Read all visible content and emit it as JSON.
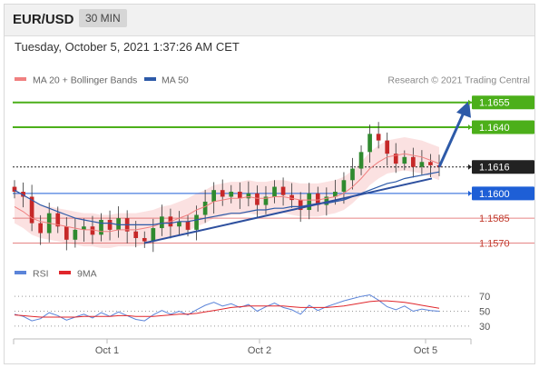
{
  "header": {
    "symbol": "EUR/USD",
    "timeframe": "30 MIN"
  },
  "datetime": "Tuesday, October 5, 2021 1:37:26 AM CET",
  "legend": {
    "ma20": "MA 20 + Bollinger Bands",
    "ma50": "MA 50",
    "ma20_color": "#f08080",
    "ma50_color": "#2d5aa8"
  },
  "credit": "Research © 2021 Trading Central",
  "rsi_legend": {
    "rsi": "RSI",
    "ma9": "9MA",
    "rsi_color": "#5b84d9",
    "ma9_color": "#e0262b"
  },
  "chart_data": {
    "type": "line",
    "title": "",
    "instrument": "EUR/USD",
    "interval": "30 MIN",
    "x_ticks": [
      "Oct 1",
      "Oct 2",
      "Oct 5"
    ],
    "price_levels": [
      {
        "value": "1.1655",
        "kind": "resistance",
        "color": "#4caf1a"
      },
      {
        "value": "1.1640",
        "kind": "resistance",
        "color": "#4caf1a"
      },
      {
        "value": "1.1616",
        "kind": "last",
        "color": "#222222"
      },
      {
        "value": "1.1600",
        "kind": "pivot",
        "color": "#1e5fd6"
      },
      {
        "value": "1.1585",
        "kind": "support",
        "color": "#e06666"
      },
      {
        "value": "1.1570",
        "kind": "support",
        "color": "#e06666"
      }
    ],
    "price_series": {
      "name": "EUR/USD",
      "values": [
        1.1601,
        1.1598,
        1.1582,
        1.1576,
        1.1588,
        1.158,
        1.1572,
        1.1578,
        1.158,
        1.1575,
        1.1584,
        1.1578,
        1.1585,
        1.1577,
        1.1573,
        1.1571,
        1.1579,
        1.1586,
        1.158,
        1.1583,
        1.1578,
        1.1587,
        1.1595,
        1.1602,
        1.1598,
        1.1601,
        1.1597,
        1.16,
        1.1593,
        1.1598,
        1.1604,
        1.1599,
        1.1596,
        1.159,
        1.16,
        1.1593,
        1.1598,
        1.1601,
        1.1608,
        1.1615,
        1.1625,
        1.1636,
        1.1632,
        1.1624,
        1.1618,
        1.1622,
        1.1616,
        1.1619,
        1.1617,
        1.1616
      ]
    },
    "ma20": [
      1.1592,
      1.1589,
      1.1585,
      1.1583,
      1.1582,
      1.1581,
      1.158,
      1.1579,
      1.1578,
      1.1578,
      1.1577,
      1.1577,
      1.1578,
      1.1578,
      1.1578,
      1.1579,
      1.158,
      1.1582,
      1.1583,
      1.1585,
      1.1587,
      1.159,
      1.1592,
      1.1595,
      1.1596,
      1.1597,
      1.1597,
      1.1598,
      1.1597,
      1.1597,
      1.1598,
      1.1598,
      1.1597,
      1.1596,
      1.1596,
      1.1596,
      1.1597,
      1.1598,
      1.16,
      1.1604,
      1.1609,
      1.1615,
      1.1619,
      1.1622,
      1.1623,
      1.1624,
      1.1623,
      1.1622,
      1.162,
      1.1618
    ],
    "ma50": [
      1.1602,
      1.1599,
      1.1596,
      1.1593,
      1.1591,
      1.1589,
      1.1587,
      1.1585,
      1.1584,
      1.1583,
      1.1582,
      1.1582,
      1.1581,
      1.1581,
      1.1581,
      1.1581,
      1.1581,
      1.1582,
      1.1582,
      1.1583,
      1.1583,
      1.1584,
      1.1585,
      1.1586,
      1.1587,
      1.1588,
      1.1588,
      1.1589,
      1.159,
      1.159,
      1.1591,
      1.1591,
      1.1592,
      1.1592,
      1.1593,
      1.1594,
      1.1594,
      1.1595,
      1.1596,
      1.1598,
      1.16,
      1.1602,
      1.1604,
      1.1606,
      1.1607,
      1.1609,
      1.161,
      1.1611,
      1.1612,
      1.1613
    ],
    "bb_width": 0.001,
    "trendline": {
      "from": [
        15,
        1.157
      ],
      "to": [
        49,
        1.1606
      ]
    },
    "target_arrow": {
      "from_value": 1.1616,
      "to_value": 1.1655
    },
    "y_range": [
      1.1562,
      1.1662
    ],
    "rsi": {
      "yticks": [
        "70",
        "50",
        "30"
      ],
      "values": [
        46,
        43,
        37,
        40,
        48,
        44,
        38,
        42,
        46,
        41,
        48,
        43,
        49,
        44,
        39,
        37,
        45,
        51,
        46,
        50,
        45,
        52,
        58,
        62,
        57,
        60,
        55,
        59,
        50,
        56,
        61,
        55,
        52,
        46,
        58,
        51,
        56,
        60,
        64,
        67,
        70,
        72,
        65,
        56,
        52,
        57,
        50,
        53,
        51,
        50
      ],
      "ma9": [
        45,
        44,
        43,
        42,
        42,
        42,
        42,
        42,
        43,
        43,
        43,
        43,
        44,
        44,
        43,
        43,
        43,
        44,
        45,
        46,
        46,
        47,
        49,
        51,
        53,
        55,
        56,
        57,
        57,
        57,
        57,
        57,
        56,
        55,
        55,
        55,
        55,
        56,
        57,
        59,
        61,
        63,
        64,
        64,
        63,
        62,
        60,
        58,
        56,
        54
      ],
      "range": [
        20,
        80
      ]
    }
  }
}
